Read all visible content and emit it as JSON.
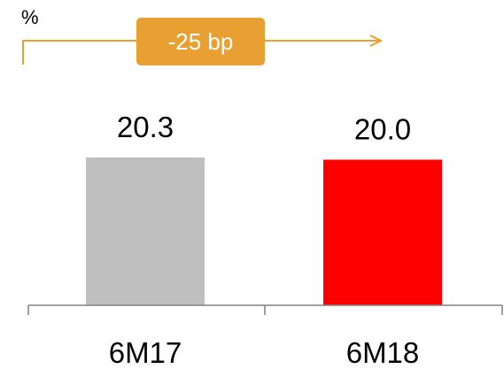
{
  "chart_data": {
    "type": "bar",
    "unit_label": "%",
    "categories": [
      "6M17",
      "6M18"
    ],
    "values": [
      20.3,
      20.0
    ],
    "data_labels": [
      "20.3",
      "20.0"
    ],
    "ylim": [
      0,
      20.3
    ],
    "grid": false,
    "colors": {
      "bars": [
        "#bfbfbf",
        "#ff0000"
      ],
      "axis": "#808080",
      "arrow": "#e8a033",
      "badge_fill": "#e8a033",
      "badge_text": "#ffffff"
    },
    "annotation": {
      "label": "-25 bp"
    }
  }
}
